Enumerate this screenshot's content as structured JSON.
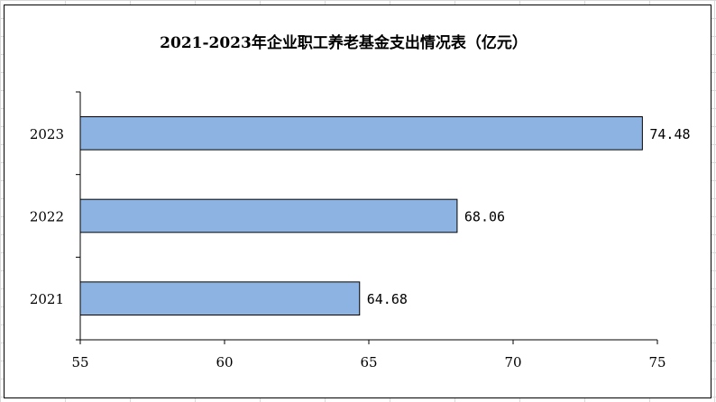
{
  "chart_data": {
    "type": "bar",
    "orientation": "horizontal",
    "title": "2021-2023年企业职工养老基金支出情况表（亿元）",
    "categories": [
      "2021",
      "2022",
      "2023"
    ],
    "values": [
      64.68,
      68.06,
      74.48
    ],
    "data_labels": [
      "64.68",
      "68.06",
      "74.48"
    ],
    "xlim": [
      55,
      75
    ],
    "x_ticks": [
      55,
      60,
      65,
      70,
      75
    ],
    "x_tick_labels": [
      "55",
      "60",
      "65",
      "70",
      "75"
    ],
    "xlabel": "",
    "ylabel": "",
    "grid": false,
    "legend": "none",
    "bar_color": "#8db3e2",
    "bar_edge_color": "#000000"
  }
}
